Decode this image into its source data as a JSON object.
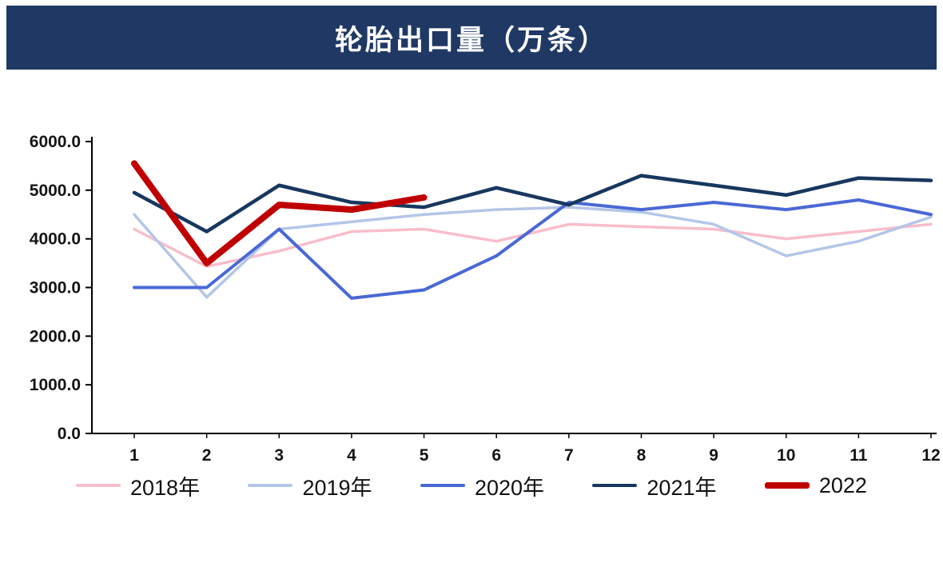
{
  "header": {
    "title": "轮胎出口量（万条）"
  },
  "chart_data": {
    "type": "line",
    "title": "轮胎出口量（万条）",
    "xlabel": "",
    "ylabel": "",
    "x": [
      1,
      2,
      3,
      4,
      5,
      6,
      7,
      8,
      9,
      10,
      11,
      12
    ],
    "ylim": [
      0,
      6000
    ],
    "y_ticks": [
      "0.0",
      "1000.0",
      "2000.0",
      "3000.0",
      "4000.0",
      "5000.0",
      "6000.0"
    ],
    "grid": false,
    "legend_position": "bottom",
    "series": [
      {
        "name": "2018年",
        "color": "#F8BDCB",
        "width": 3.5,
        "values": [
          4200,
          3430,
          3750,
          4150,
          4200,
          3950,
          4300,
          4250,
          4200,
          4000,
          4150,
          4300
        ]
      },
      {
        "name": "2019年",
        "color": "#B3C6E7",
        "width": 3.5,
        "values": [
          4500,
          2800,
          4200,
          4350,
          4500,
          4600,
          4650,
          4550,
          4300,
          3650,
          3950,
          4450
        ]
      },
      {
        "name": "2020年",
        "color": "#4A68D5",
        "width": 4,
        "values": [
          3000,
          3000,
          4200,
          2780,
          2950,
          3650,
          4750,
          4600,
          4750,
          4600,
          4800,
          4500
        ]
      },
      {
        "name": "2021年",
        "color": "#17375E",
        "width": 4.5,
        "values": [
          4950,
          4150,
          5100,
          4750,
          4650,
          5050,
          4700,
          5300,
          5100,
          4900,
          5250,
          5200
        ]
      },
      {
        "name": "2022",
        "color": "#C00000",
        "width": 8,
        "values": [
          5550,
          3500,
          4700,
          4600,
          4850
        ]
      }
    ]
  }
}
